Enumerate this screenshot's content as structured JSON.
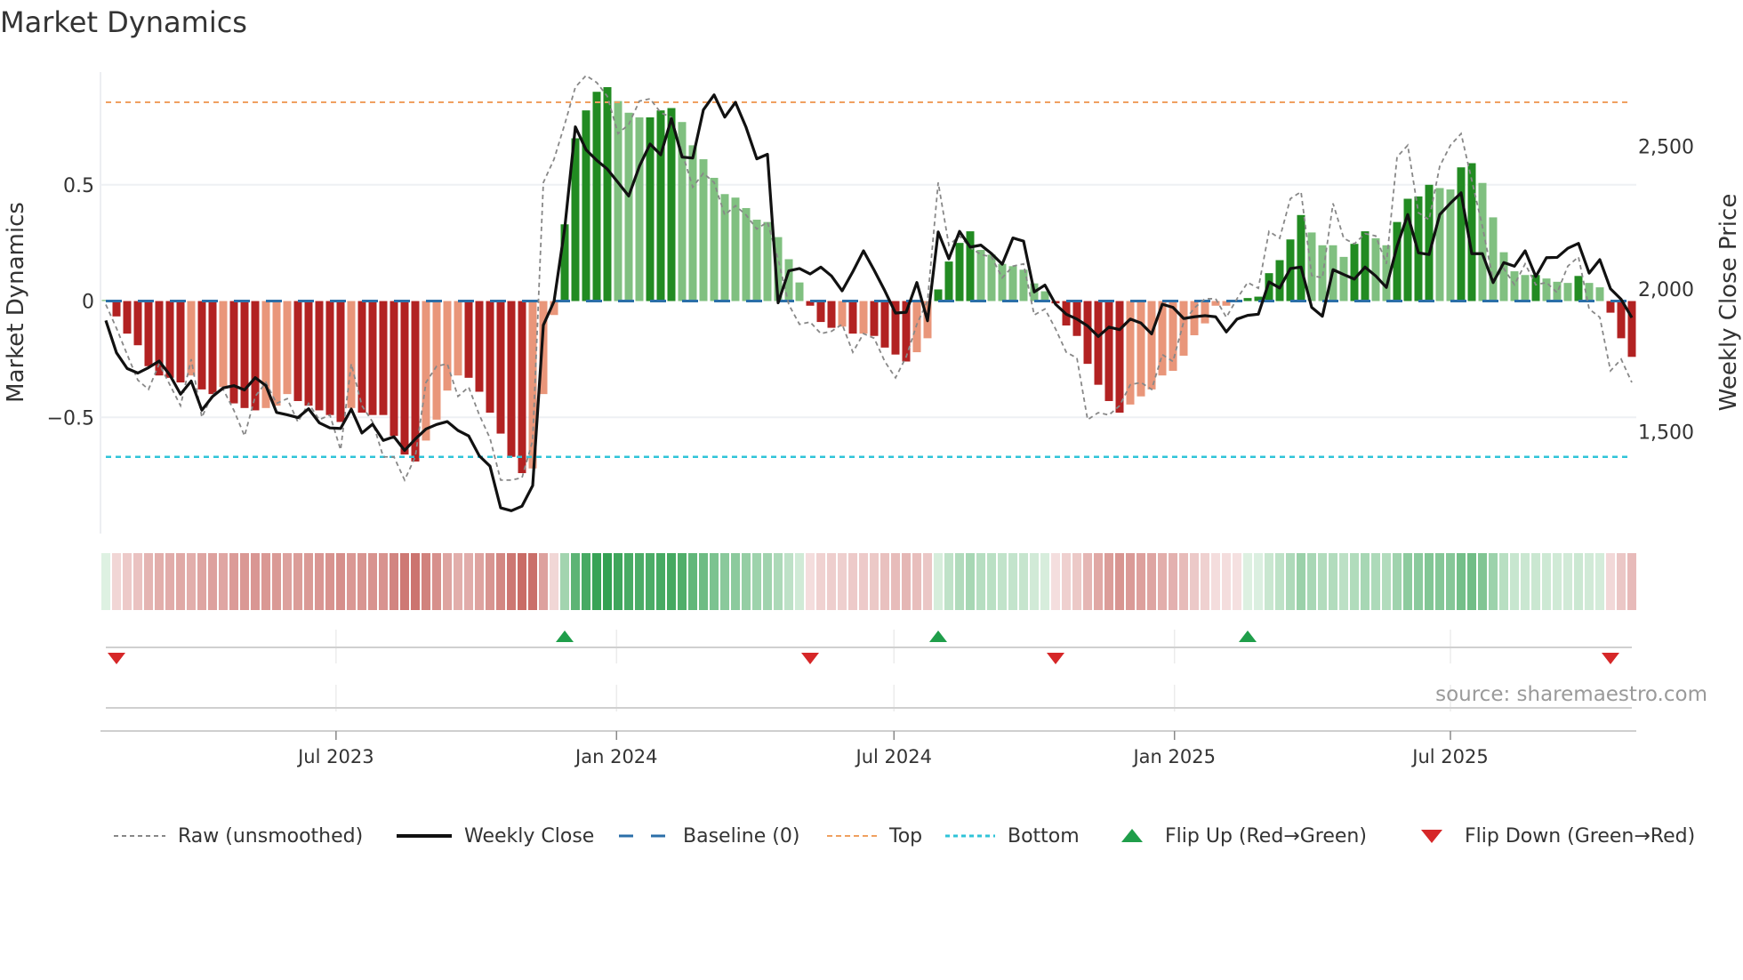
{
  "title": "Market Dynamics",
  "source": "source: sharemaestro.com",
  "legend": {
    "raw": "Raw (unsmoothed)",
    "close": "Weekly Close",
    "baseline": "Baseline (0)",
    "top": "Top",
    "bottom": "Bottom",
    "flip_up": "Flip Up (Red→Green)",
    "flip_down": "Flip Down (Green→Red)"
  },
  "colors": {
    "strong_green": "#228b22",
    "weak_green": "#80c080",
    "strong_red": "#b22222",
    "weak_red": "#e9967a",
    "raw": "#888888",
    "close": "#111111",
    "baseline": "#2b6fa8",
    "top": "#f0a060",
    "bottom": "#30c4d8",
    "flip_up": "#1f9e4a",
    "flip_down": "#d62728"
  },
  "chart_data": {
    "type": "bar",
    "title": "Market Dynamics",
    "ylabel": "Market Dynamics",
    "y2label": "Weekly Close Price",
    "frequency": "weekly",
    "start_week": "2023-01-31",
    "ylim": [
      -1.0,
      0.985
    ],
    "y2lim": [
      1190,
      2806
    ],
    "yticks": [
      {
        "v": 0.5,
        "label": "0.5"
      },
      {
        "v": 0,
        "label": "0"
      },
      {
        "v": -0.5,
        "label": "−0.5"
      }
    ],
    "y2ticks": [
      {
        "v": 2500,
        "label": "2,500"
      },
      {
        "v": 2000,
        "label": "2,000"
      },
      {
        "v": 1500,
        "label": "1,500"
      }
    ],
    "xticks": [
      {
        "date": "2023-07-01",
        "label": "Jul 2023"
      },
      {
        "date": "2024-01-01",
        "label": "Jan 2024"
      },
      {
        "date": "2024-07-01",
        "label": "Jul 2024"
      },
      {
        "date": "2025-01-01",
        "label": "Jan 2025"
      },
      {
        "date": "2025-07-01",
        "label": "Jul 2025"
      }
    ],
    "top_level": 0.855,
    "bottom_level": -0.67,
    "baseline": 0,
    "values": [
      0.005,
      -0.066,
      -0.14,
      -0.19,
      -0.28,
      -0.32,
      -0.33,
      -0.35,
      -0.32,
      -0.38,
      -0.4,
      -0.37,
      -0.44,
      -0.46,
      -0.47,
      -0.46,
      -0.45,
      -0.4,
      -0.43,
      -0.45,
      -0.47,
      -0.49,
      -0.52,
      -0.46,
      -0.48,
      -0.49,
      -0.49,
      -0.58,
      -0.66,
      -0.69,
      -0.6,
      -0.51,
      -0.385,
      -0.32,
      -0.33,
      -0.39,
      -0.48,
      -0.57,
      -0.67,
      -0.74,
      -0.72,
      -0.4,
      -0.06,
      0.33,
      0.7,
      0.82,
      0.9,
      0.92,
      0.86,
      0.81,
      0.79,
      0.79,
      0.82,
      0.83,
      0.77,
      0.67,
      0.61,
      0.53,
      0.46,
      0.445,
      0.4,
      0.35,
      0.34,
      0.275,
      0.18,
      0.08,
      -0.02,
      -0.09,
      -0.115,
      -0.11,
      -0.14,
      -0.14,
      -0.15,
      -0.2,
      -0.23,
      -0.26,
      -0.22,
      -0.16,
      0.05,
      0.17,
      0.25,
      0.3,
      0.22,
      0.2,
      0.16,
      0.15,
      0.135,
      0.076,
      0.042,
      -0.01,
      -0.105,
      -0.15,
      -0.27,
      -0.36,
      -0.43,
      -0.48,
      -0.445,
      -0.41,
      -0.38,
      -0.32,
      -0.3,
      -0.235,
      -0.147,
      -0.096,
      -0.02,
      -0.02,
      -0.003,
      0.013,
      0.019,
      0.12,
      0.176,
      0.265,
      0.37,
      0.295,
      0.24,
      0.24,
      0.19,
      0.246,
      0.3,
      0.27,
      0.24,
      0.34,
      0.44,
      0.45,
      0.5,
      0.486,
      0.48,
      0.575,
      0.593,
      0.508,
      0.36,
      0.21,
      0.128,
      0.112,
      0.112,
      0.097,
      0.083,
      0.078,
      0.108,
      0.078,
      0.059,
      -0.05,
      -0.16,
      -0.24
    ],
    "strong": [
      0,
      1,
      1,
      1,
      1,
      1,
      1,
      1,
      0,
      1,
      1,
      0,
      1,
      1,
      1,
      0,
      0,
      0,
      1,
      1,
      1,
      1,
      1,
      0,
      1,
      1,
      1,
      1,
      1,
      1,
      0,
      0,
      0,
      0,
      1,
      1,
      1,
      1,
      1,
      1,
      0,
      0,
      0,
      1,
      1,
      1,
      1,
      1,
      0,
      0,
      0,
      1,
      1,
      1,
      0,
      0,
      0,
      0,
      0,
      0,
      0,
      0,
      0,
      0,
      0,
      0,
      1,
      1,
      1,
      0,
      1,
      0,
      1,
      1,
      1,
      1,
      0,
      0,
      1,
      1,
      1,
      1,
      0,
      0,
      0,
      0,
      0,
      0,
      0,
      1,
      1,
      1,
      1,
      1,
      1,
      1,
      0,
      0,
      0,
      0,
      0,
      0,
      0,
      0,
      0,
      0,
      0,
      1,
      1,
      1,
      1,
      1,
      1,
      0,
      0,
      0,
      0,
      1,
      1,
      0,
      0,
      1,
      1,
      1,
      1,
      0,
      0,
      1,
      1,
      0,
      0,
      0,
      0,
      0,
      1,
      0,
      0,
      0,
      1,
      0,
      0,
      1,
      1,
      1
    ],
    "raw": [
      -0.015,
      -0.117,
      -0.23,
      -0.34,
      -0.38,
      -0.27,
      -0.36,
      -0.45,
      -0.25,
      -0.5,
      -0.4,
      -0.38,
      -0.47,
      -0.58,
      -0.41,
      -0.35,
      -0.44,
      -0.42,
      -0.52,
      -0.44,
      -0.51,
      -0.49,
      -0.64,
      -0.27,
      -0.45,
      -0.52,
      -0.67,
      -0.67,
      -0.77,
      -0.67,
      -0.35,
      -0.28,
      -0.27,
      -0.41,
      -0.37,
      -0.49,
      -0.59,
      -0.77,
      -0.77,
      -0.76,
      -0.6,
      0.51,
      0.61,
      0.76,
      0.92,
      0.97,
      0.94,
      0.88,
      0.72,
      0.76,
      0.86,
      0.87,
      0.81,
      0.79,
      0.64,
      0.49,
      0.55,
      0.51,
      0.37,
      0.41,
      0.37,
      0.31,
      0.34,
      0.18,
      -0.015,
      -0.1,
      -0.09,
      -0.14,
      -0.13,
      -0.1,
      -0.22,
      -0.14,
      -0.16,
      -0.26,
      -0.33,
      -0.24,
      -0.1,
      0,
      0.51,
      0.24,
      0.28,
      0.23,
      0.2,
      0.19,
      0.1,
      0.15,
      0.16,
      -0.06,
      -0.034,
      -0.12,
      -0.22,
      -0.245,
      -0.51,
      -0.48,
      -0.49,
      -0.45,
      -0.36,
      -0.35,
      -0.38,
      -0.23,
      -0.26,
      -0.09,
      -0.03,
      0.01,
      0.01,
      -0.07,
      0.01,
      0.08,
      0.055,
      0.3,
      0.27,
      0.44,
      0.47,
      0.11,
      0.1,
      0.42,
      0.27,
      0.246,
      0.29,
      0.28,
      0.16,
      0.62,
      0.67,
      0.38,
      0.35,
      0.58,
      0.67,
      0.72,
      0.52,
      0.32,
      0.09,
      0.14,
      0.07,
      0.16,
      0.07,
      0.08,
      0.036,
      0.15,
      0.19,
      -0.034,
      -0.07,
      -0.3,
      -0.25,
      -0.35
    ],
    "close": [
      1936,
      1823,
      1768,
      1752,
      1771,
      1794,
      1745,
      1678,
      1724,
      1622,
      1670,
      1700,
      1708,
      1693,
      1736,
      1708,
      1614,
      1606,
      1596,
      1627,
      1578,
      1560,
      1558,
      1626,
      1542,
      1573,
      1516,
      1529,
      1481,
      1521,
      1556,
      1572,
      1582,
      1551,
      1532,
      1462,
      1426,
      1280,
      1270,
      1286,
      1358,
      1920,
      2003,
      2258,
      2614,
      2534,
      2497,
      2466,
      2419,
      2372,
      2476,
      2554,
      2516,
      2643,
      2508,
      2505,
      2674,
      2726,
      2648,
      2700,
      2612,
      2502,
      2518,
      1998,
      2110,
      2118,
      2099,
      2123,
      2092,
      2040,
      2107,
      2180,
      2112,
      2040,
      1962,
      1965,
      2069,
      1935,
      2246,
      2152,
      2248,
      2193,
      2200,
      2170,
      2133,
      2225,
      2214,
      2036,
      2060,
      1993,
      1958,
      1941,
      1917,
      1880,
      1913,
      1904,
      1941,
      1927,
      1889,
      1993,
      1982,
      1943,
      1949,
      1953,
      1949,
      1896,
      1941,
      1954,
      1958,
      2071,
      2050,
      2118,
      2123,
      1982,
      1951,
      2114,
      2097,
      2081,
      2123,
      2092,
      2052,
      2196,
      2307,
      2173,
      2167,
      2307,
      2347,
      2383,
      2170,
      2170,
      2069,
      2139,
      2126,
      2180,
      2090,
      2156,
      2157,
      2189,
      2206,
      2102,
      2149,
      2047,
      2010,
      1946
    ]
  }
}
